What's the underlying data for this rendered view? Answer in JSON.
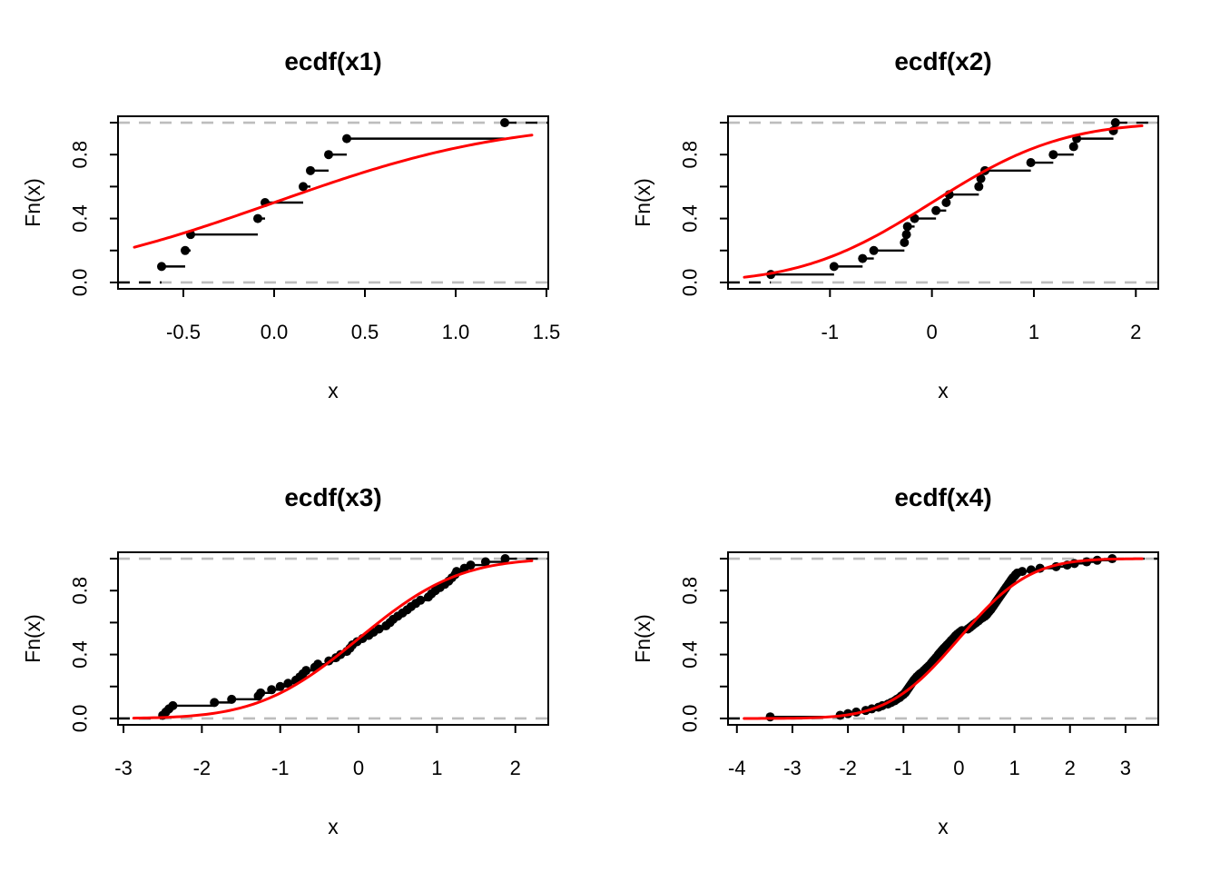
{
  "figure_title": "",
  "colors": {
    "curve": "#FF0000",
    "steps": "#000000",
    "points": "#000000",
    "ref_line": "#BDBDBD",
    "box": "#000000",
    "background": "#FFFFFF"
  },
  "chart_data": [
    {
      "type": "line",
      "subtype": "ecdf_step",
      "title": "ecdf(x1)",
      "xlabel": "x",
      "ylabel": "Fn(x)",
      "n": 10,
      "sample_x": [
        -0.62,
        -0.49,
        -0.46,
        -0.09,
        -0.05,
        0.16,
        0.2,
        0.3,
        0.4,
        1.27
      ],
      "x_ticks": [
        -0.5,
        0.0,
        0.5,
        1.0,
        1.5
      ],
      "x_tick_labels": [
        "-0.5",
        "0.0",
        "0.5",
        "1.0",
        "1.5"
      ],
      "y_ticks": [
        0,
        0.2,
        0.4,
        0.6,
        0.8,
        1.0
      ],
      "y_tick_labels": [
        "0.0",
        "",
        "0.4",
        "",
        "0.8",
        ""
      ],
      "xlim_usr": [
        -0.86,
        1.51
      ],
      "ylim_usr": [
        -0.04,
        1.04
      ],
      "ref_lines_y": [
        0,
        1
      ],
      "curve": {
        "type": "normal_cdf",
        "mean": 0,
        "sd": 1,
        "x_range": [
          -0.77,
          1.42
        ]
      }
    },
    {
      "type": "line",
      "subtype": "ecdf_step",
      "title": "ecdf(x2)",
      "xlabel": "x",
      "ylabel": "Fn(x)",
      "n": 20,
      "sample_x": [
        -1.58,
        -0.96,
        -0.68,
        -0.57,
        -0.27,
        -0.25,
        -0.24,
        -0.17,
        0.04,
        0.14,
        0.17,
        0.46,
        0.48,
        0.52,
        0.97,
        1.19,
        1.39,
        1.42,
        1.78,
        1.8
      ],
      "x_ticks": [
        -1,
        0,
        1,
        2
      ],
      "x_tick_labels": [
        "-1",
        "0",
        "1",
        "2"
      ],
      "y_ticks": [
        0,
        0.2,
        0.4,
        0.6,
        0.8,
        1.0
      ],
      "y_tick_labels": [
        "0.0",
        "",
        "0.4",
        "",
        "0.8",
        ""
      ],
      "xlim_usr": [
        -2.0,
        2.22
      ],
      "ylim_usr": [
        -0.04,
        1.04
      ],
      "ref_lines_y": [
        0,
        1
      ],
      "curve": {
        "type": "normal_cdf",
        "mean": 0,
        "sd": 1,
        "x_range": [
          -1.84,
          2.06
        ]
      }
    },
    {
      "type": "line",
      "subtype": "ecdf_step",
      "title": "ecdf(x3)",
      "xlabel": "x",
      "ylabel": "Fn(x)",
      "n": 50,
      "sample_x": [
        -2.5,
        -2.46,
        -2.42,
        -2.37,
        -1.84,
        -1.62,
        -1.28,
        -1.25,
        -1.11,
        -1.0,
        -0.9,
        -0.8,
        -0.75,
        -0.71,
        -0.67,
        -0.56,
        -0.52,
        -0.38,
        -0.29,
        -0.23,
        -0.15,
        -0.11,
        -0.08,
        -0.02,
        0.05,
        0.13,
        0.19,
        0.26,
        0.35,
        0.4,
        0.44,
        0.5,
        0.56,
        0.62,
        0.67,
        0.73,
        0.79,
        0.89,
        0.93,
        0.98,
        1.04,
        1.1,
        1.15,
        1.19,
        1.23,
        1.25,
        1.35,
        1.43,
        1.62,
        1.87
      ],
      "x_ticks": [
        -3,
        -2,
        -1,
        0,
        1,
        2
      ],
      "x_tick_labels": [
        "-3",
        "-2",
        "-1",
        "0",
        "1",
        "2"
      ],
      "y_ticks": [
        0,
        0.2,
        0.4,
        0.6,
        0.8,
        1.0
      ],
      "y_tick_labels": [
        "0.0",
        "",
        "0.4",
        "",
        "0.8",
        ""
      ],
      "xlim_usr": [
        -3.07,
        2.42
      ],
      "ylim_usr": [
        -0.04,
        1.04
      ],
      "ref_lines_y": [
        0,
        1
      ],
      "curve": {
        "type": "normal_cdf",
        "mean": 0,
        "sd": 1,
        "x_range": [
          -2.87,
          2.21
        ]
      }
    },
    {
      "type": "line",
      "subtype": "ecdf_step",
      "title": "ecdf(x4)",
      "xlabel": "x",
      "ylabel": "Fn(x)",
      "n": 100,
      "sample_x": [
        -3.4,
        -2.14,
        -2.0,
        -1.85,
        -1.68,
        -1.57,
        -1.45,
        -1.38,
        -1.28,
        -1.22,
        -1.16,
        -1.12,
        -1.07,
        -1.04,
        -1.0,
        -0.97,
        -0.95,
        -0.93,
        -0.91,
        -0.89,
        -0.87,
        -0.85,
        -0.83,
        -0.81,
        -0.785,
        -0.76,
        -0.73,
        -0.7,
        -0.66,
        -0.63,
        -0.6,
        -0.57,
        -0.54,
        -0.51,
        -0.49,
        -0.465,
        -0.44,
        -0.415,
        -0.39,
        -0.37,
        -0.345,
        -0.32,
        -0.295,
        -0.27,
        -0.24,
        -0.215,
        -0.185,
        -0.16,
        -0.135,
        -0.105,
        -0.08,
        -0.055,
        -0.02,
        0.015,
        0.054,
        0.16,
        0.2,
        0.235,
        0.27,
        0.31,
        0.35,
        0.38,
        0.425,
        0.47,
        0.5,
        0.52,
        0.545,
        0.57,
        0.59,
        0.61,
        0.63,
        0.65,
        0.67,
        0.69,
        0.71,
        0.73,
        0.75,
        0.77,
        0.79,
        0.81,
        0.83,
        0.85,
        0.87,
        0.89,
        0.91,
        0.93,
        0.95,
        0.97,
        1.0,
        1.02,
        1.05,
        1.14,
        1.3,
        1.46,
        1.75,
        1.95,
        2.08,
        2.3,
        2.49,
        2.76
      ],
      "x_ticks": [
        -4,
        -3,
        -2,
        -1,
        0,
        1,
        2,
        3
      ],
      "x_tick_labels": [
        "-4",
        "-3",
        "-2",
        "-1",
        "0",
        "1",
        "2",
        "3"
      ],
      "y_ticks": [
        0,
        0.2,
        0.4,
        0.6,
        0.8,
        1.0
      ],
      "y_tick_labels": [
        "0.0",
        "",
        "0.4",
        "",
        "0.8",
        ""
      ],
      "xlim_usr": [
        -4.16,
        3.59
      ],
      "ylim_usr": [
        -0.04,
        1.04
      ],
      "ref_lines_y": [
        0,
        1
      ],
      "curve": {
        "type": "normal_cdf",
        "mean": 0,
        "sd": 1,
        "x_range": [
          -3.87,
          3.3
        ]
      }
    }
  ]
}
